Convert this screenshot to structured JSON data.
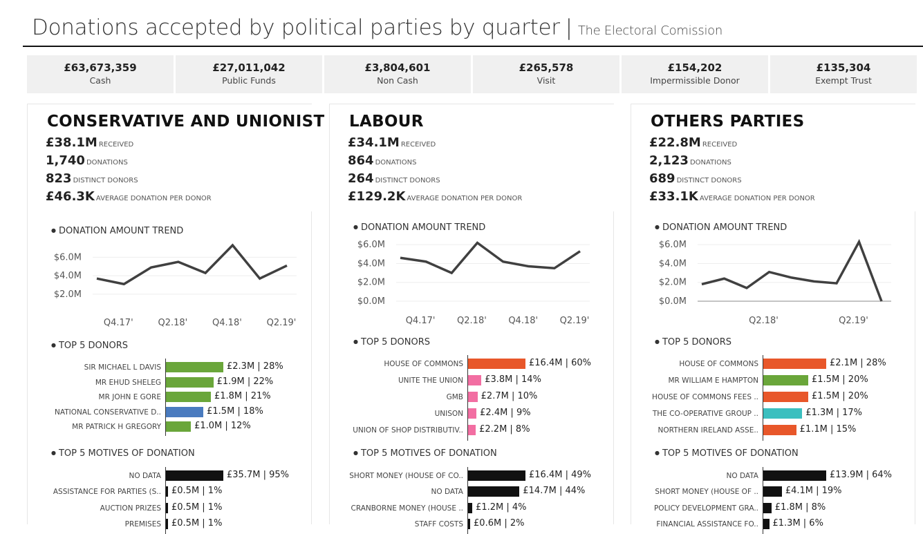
{
  "header": {
    "title": "Donations accepted by political parties by quarter",
    "separator": "|",
    "subtitle": "The Electoral Comission"
  },
  "kpis": [
    {
      "value": "£63,673,359",
      "label": "Cash"
    },
    {
      "value": "£27,011,042",
      "label": "Public Funds"
    },
    {
      "value": "£3,804,601",
      "label": "Non Cash"
    },
    {
      "value": "£265,578",
      "label": "Visit"
    },
    {
      "value": "£154,202",
      "label": "Impermissible Donor"
    },
    {
      "value": "£135,304",
      "label": "Exempt Trust"
    }
  ],
  "sections": {
    "trend": "DONATION AMOUNT TREND",
    "donors": "TOP 5 DONORS",
    "motives": "TOP 5 MOTIVES OF DONATION"
  },
  "panels": [
    {
      "name": "CONSERVATIVE AND UNIONIST",
      "stats": [
        {
          "n": "£38.1M",
          "u": "RECEIVED"
        },
        {
          "n": "1,740",
          "u": "DONATIONS"
        },
        {
          "n": "823",
          "u": "DISTINCT DONORS"
        },
        {
          "n": "£46.3K",
          "u": "AVERAGE DONATION PER DONOR"
        }
      ],
      "donors": [
        {
          "label": "SIR MICHAEL L DAVIS",
          "value": 2.3,
          "text": "£2.3M | 28%",
          "color": "#6aa63a"
        },
        {
          "label": "MR EHUD SHELEG",
          "value": 1.9,
          "text": "£1.9M | 22%",
          "color": "#6aa63a"
        },
        {
          "label": "MR JOHN E GORE",
          "value": 1.8,
          "text": "£1.8M | 21%",
          "color": "#6aa63a"
        },
        {
          "label": "NATIONAL CONSERVATIVE D..",
          "value": 1.5,
          "text": "£1.5M | 18%",
          "color": "#4a7bbf"
        },
        {
          "label": "MR PATRICK H GREGORY",
          "value": 1.0,
          "text": "£1.0M | 12%",
          "color": "#6aa63a"
        }
      ],
      "motives": [
        {
          "label": "NO DATA",
          "value": 35.7,
          "text": "£35.7M | 95%"
        },
        {
          "label": "ASSISTANCE FOR PARTIES (S..",
          "value": 0.5,
          "text": "£0.5M | 1%"
        },
        {
          "label": "AUCTION PRIZES",
          "value": 0.5,
          "text": "£0.5M | 1%"
        },
        {
          "label": "PREMISES",
          "value": 0.5,
          "text": "£0.5M | 1%"
        }
      ]
    },
    {
      "name": "LABOUR",
      "stats": [
        {
          "n": "£34.1M",
          "u": "RECEIVED"
        },
        {
          "n": "864",
          "u": "DONATIONS"
        },
        {
          "n": "264",
          "u": "DISTINCT DONORS"
        },
        {
          "n": "£129.2K",
          "u": "AVERAGE DONATION PER DONOR"
        }
      ],
      "donors": [
        {
          "label": "HOUSE OF COMMONS",
          "value": 16.4,
          "text": "£16.4M | 60%",
          "color": "#e8572a"
        },
        {
          "label": "UNITE THE UNION",
          "value": 3.8,
          "text": "£3.8M | 14%",
          "color": "#f26ea2"
        },
        {
          "label": "GMB",
          "value": 2.7,
          "text": "£2.7M | 10%",
          "color": "#f26ea2"
        },
        {
          "label": "UNISON",
          "value": 2.4,
          "text": "£2.4M | 9%",
          "color": "#f26ea2"
        },
        {
          "label": "UNION OF SHOP DISTRIBUTIV..",
          "value": 2.2,
          "text": "£2.2M | 8%",
          "color": "#f26ea2"
        }
      ],
      "motives": [
        {
          "label": "SHORT MONEY (HOUSE OF CO..",
          "value": 16.4,
          "text": "£16.4M | 49%"
        },
        {
          "label": "NO DATA",
          "value": 14.7,
          "text": "£14.7M | 44%"
        },
        {
          "label": "CRANBORNE MONEY (HOUSE ..",
          "value": 1.2,
          "text": "£1.2M | 4%"
        },
        {
          "label": "STAFF COSTS",
          "value": 0.6,
          "text": "£0.6M | 2%"
        }
      ]
    },
    {
      "name": "OTHERS PARTIES",
      "stats": [
        {
          "n": "£22.8M",
          "u": "RECEIVED"
        },
        {
          "n": "2,123",
          "u": "DONATIONS"
        },
        {
          "n": "689",
          "u": "DISTINCT DONORS"
        },
        {
          "n": "£33.1K",
          "u": "AVERAGE DONATION PER DONOR"
        }
      ],
      "donors": [
        {
          "label": "HOUSE OF COMMONS",
          "value": 2.1,
          "text": "£2.1M | 28%",
          "color": "#e8572a"
        },
        {
          "label": "MR WILLIAM E HAMPTON",
          "value": 1.5,
          "text": "£1.5M | 20%",
          "color": "#6aa63a"
        },
        {
          "label": "HOUSE OF COMMONS FEES ..",
          "value": 1.5,
          "text": "£1.5M | 20%",
          "color": "#e8572a"
        },
        {
          "label": "THE CO-OPERATIVE GROUP ..",
          "value": 1.3,
          "text": "£1.3M | 17%",
          "color": "#3bbfbf"
        },
        {
          "label": "NORTHERN IRELAND ASSE..",
          "value": 1.1,
          "text": "£1.1M | 15%",
          "color": "#e8572a"
        }
      ],
      "motives": [
        {
          "label": "NO DATA",
          "value": 13.9,
          "text": "£13.9M | 64%"
        },
        {
          "label": "SHORT MONEY (HOUSE OF ..",
          "value": 4.1,
          "text": "£4.1M | 19%"
        },
        {
          "label": "POLICY DEVELOPMENT GRA..",
          "value": 1.8,
          "text": "£1.8M | 8%"
        },
        {
          "label": "FINANCIAL ASSISTANCE FO..",
          "value": 1.3,
          "text": "£1.3M | 6%"
        }
      ]
    }
  ],
  "chart_data": [
    {
      "type": "line",
      "title": "DONATION AMOUNT TREND",
      "party": "CONSERVATIVE AND UNIONIST",
      "x": [
        "Q3.17'",
        "Q4.17'",
        "Q1.18'",
        "Q2.18'",
        "Q3.18'",
        "Q4.18'",
        "Q1.19'",
        "Q2.19'"
      ],
      "y": [
        3.7,
        3.1,
        4.9,
        5.5,
        4.3,
        7.3,
        3.7,
        5.1
      ],
      "xticks": [
        "Q4.17'",
        "Q2.18'",
        "Q4.18'",
        "Q2.19'"
      ],
      "yticks": [
        "$2.0M",
        "$4.0M",
        "$6.0M"
      ],
      "tickvals": [
        2,
        4,
        6
      ],
      "ylim": [
        0.5,
        7.6
      ]
    },
    {
      "type": "line",
      "title": "DONATION AMOUNT TREND",
      "party": "LABOUR",
      "x": [
        "Q3.17'",
        "Q4.17'",
        "Q1.18'",
        "Q2.18'",
        "Q3.18'",
        "Q4.18'",
        "Q1.19'",
        "Q2.19'"
      ],
      "y": [
        4.6,
        4.2,
        3.0,
        6.2,
        4.2,
        3.7,
        3.5,
        5.3
      ],
      "xticks": [
        "Q4.17'",
        "Q2.18'",
        "Q4.18'",
        "Q2.19'"
      ],
      "yticks": [
        "$0.0M",
        "$2.0M",
        "$4.0M",
        "$6.0M"
      ],
      "tickvals": [
        0,
        2,
        4,
        6
      ],
      "ylim": [
        0,
        6.6
      ]
    },
    {
      "type": "line",
      "title": "DONATION AMOUNT TREND",
      "party": "OTHERS PARTIES",
      "x": [
        "Q3.17'",
        "Q4.17'",
        "Q1.18'",
        "Q2.18'",
        "Q3.18'",
        "Q4.18'",
        "Q1.19'",
        "Q2.19'",
        "Q3.19'"
      ],
      "y": [
        1.8,
        2.4,
        1.4,
        3.1,
        2.5,
        2.1,
        1.9,
        6.3,
        0.0
      ],
      "xticks": [
        "Q2.18'",
        "Q2.19'"
      ],
      "yticks": [
        "$0.0M",
        "$2.0M",
        "$4.0M",
        "$6.0M"
      ],
      "tickvals": [
        0,
        2,
        4,
        6
      ],
      "ylim": [
        0,
        6.6
      ]
    }
  ]
}
